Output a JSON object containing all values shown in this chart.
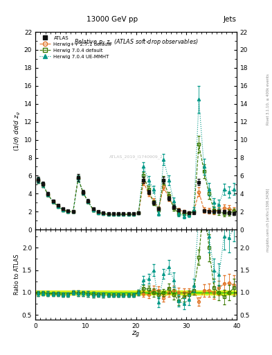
{
  "title_top": "13000 GeV pp",
  "title_right": "Jets",
  "main_title": "Relative $p_T$ $z_g$ (ATLAS soft-drop observables)",
  "ylabel_main": "(1/σ) dσ/d z_g",
  "ylabel_ratio": "Ratio to ATLAS",
  "xlabel": "z_g",
  "xlim": [
    0,
    40
  ],
  "ylim_main": [
    0,
    22
  ],
  "ylim_ratio": [
    0.4,
    2.4
  ],
  "ratio_yticks": [
    0.5,
    1.0,
    1.5,
    2.0
  ],
  "main_yticks": [
    0,
    2,
    4,
    6,
    8,
    10,
    12,
    14,
    16,
    18,
    20,
    22
  ],
  "xticks": [
    0,
    10,
    20,
    30,
    40
  ],
  "watermark": "mcplots.cern.ch [arXiv:1306.3436]",
  "rivet_label": "Rivet 3.1.10, ≥ 400k events",
  "atlas_x": [
    0.5,
    1.5,
    2.5,
    3.5,
    4.5,
    5.5,
    6.5,
    7.5,
    8.5,
    9.5,
    10.5,
    11.5,
    12.5,
    13.5,
    14.5,
    15.5,
    16.5,
    17.5,
    18.5,
    19.5,
    20.5,
    21.5,
    22.5,
    23.5,
    24.5,
    25.5,
    26.5,
    27.5,
    28.5,
    29.5,
    30.5,
    31.5,
    32.5,
    33.5,
    34.5,
    35.5,
    36.5,
    37.5,
    38.5,
    39.5
  ],
  "atlas_y": [
    5.6,
    5.1,
    4.0,
    3.2,
    2.7,
    2.3,
    2.1,
    2.0,
    5.8,
    4.2,
    3.2,
    2.3,
    2.0,
    1.9,
    1.8,
    1.8,
    1.8,
    1.8,
    1.8,
    1.8,
    1.9,
    5.5,
    4.2,
    3.0,
    2.3,
    5.5,
    3.5,
    2.5,
    2.2,
    2.0,
    1.9,
    1.9,
    5.3,
    2.1,
    2.0,
    2.0,
    2.0,
    2.0,
    1.9,
    1.8
  ],
  "atlas_yerr": [
    0.3,
    0.25,
    0.2,
    0.15,
    0.12,
    0.1,
    0.1,
    0.1,
    0.35,
    0.25,
    0.18,
    0.14,
    0.1,
    0.1,
    0.08,
    0.08,
    0.08,
    0.08,
    0.08,
    0.08,
    0.12,
    0.35,
    0.25,
    0.2,
    0.15,
    0.35,
    0.25,
    0.18,
    0.14,
    0.12,
    0.1,
    0.1,
    0.35,
    0.18,
    0.15,
    0.15,
    0.15,
    0.18,
    0.18,
    0.18
  ],
  "hpp271_x": [
    0.5,
    1.5,
    2.5,
    3.5,
    4.5,
    5.5,
    6.5,
    7.5,
    8.5,
    9.5,
    10.5,
    11.5,
    12.5,
    13.5,
    14.5,
    15.5,
    16.5,
    17.5,
    18.5,
    19.5,
    20.5,
    21.5,
    22.5,
    23.5,
    24.5,
    25.5,
    26.5,
    27.5,
    28.5,
    29.5,
    30.5,
    31.5,
    32.5,
    33.5,
    34.5,
    35.5,
    36.5,
    37.5,
    38.5,
    39.5
  ],
  "hpp271_y": [
    5.5,
    5.0,
    3.9,
    3.1,
    2.6,
    2.2,
    2.0,
    2.0,
    5.7,
    4.1,
    3.1,
    2.2,
    1.9,
    1.8,
    1.7,
    1.7,
    1.7,
    1.7,
    1.7,
    1.7,
    1.9,
    5.3,
    4.0,
    3.2,
    2.4,
    4.8,
    3.5,
    2.6,
    2.2,
    2.0,
    1.9,
    2.0,
    4.2,
    2.2,
    2.1,
    2.0,
    2.2,
    2.4,
    2.3,
    2.1
  ],
  "hpp271_yerr": [
    0.3,
    0.25,
    0.2,
    0.15,
    0.12,
    0.1,
    0.1,
    0.1,
    0.35,
    0.25,
    0.18,
    0.14,
    0.1,
    0.1,
    0.08,
    0.08,
    0.08,
    0.08,
    0.08,
    0.08,
    0.12,
    0.35,
    0.3,
    0.25,
    0.2,
    0.4,
    0.35,
    0.28,
    0.22,
    0.18,
    0.16,
    0.18,
    0.5,
    0.3,
    0.3,
    0.28,
    0.32,
    0.38,
    0.4,
    0.38
  ],
  "h704d_x": [
    0.5,
    1.5,
    2.5,
    3.5,
    4.5,
    5.5,
    6.5,
    7.5,
    8.5,
    9.5,
    10.5,
    11.5,
    12.5,
    13.5,
    14.5,
    15.5,
    16.5,
    17.5,
    18.5,
    19.5,
    20.5,
    21.5,
    22.5,
    23.5,
    24.5,
    25.5,
    26.5,
    27.5,
    28.5,
    29.5,
    30.5,
    31.5,
    32.5,
    33.5,
    34.5,
    35.5,
    36.5,
    37.5,
    38.5,
    39.5
  ],
  "h704d_y": [
    5.5,
    5.0,
    3.9,
    3.1,
    2.6,
    2.2,
    2.0,
    2.0,
    5.7,
    4.1,
    3.1,
    2.2,
    1.9,
    1.8,
    1.7,
    1.7,
    1.7,
    1.7,
    1.7,
    1.7,
    1.9,
    6.0,
    4.5,
    3.0,
    2.2,
    5.5,
    3.8,
    2.4,
    1.8,
    1.8,
    1.8,
    2.0,
    9.5,
    6.5,
    4.0,
    2.2,
    2.0,
    1.8,
    1.9,
    2.0
  ],
  "h704d_yerr": [
    0.3,
    0.25,
    0.2,
    0.15,
    0.12,
    0.1,
    0.1,
    0.1,
    0.35,
    0.25,
    0.18,
    0.14,
    0.1,
    0.1,
    0.08,
    0.08,
    0.08,
    0.08,
    0.08,
    0.08,
    0.12,
    0.4,
    0.35,
    0.28,
    0.2,
    0.45,
    0.38,
    0.28,
    0.22,
    0.2,
    0.18,
    0.2,
    0.9,
    0.8,
    0.6,
    0.4,
    0.35,
    0.32,
    0.32,
    0.35
  ],
  "h704u_x": [
    0.5,
    1.5,
    2.5,
    3.5,
    4.5,
    5.5,
    6.5,
    7.5,
    8.5,
    9.5,
    10.5,
    11.5,
    12.5,
    13.5,
    14.5,
    15.5,
    16.5,
    17.5,
    18.5,
    19.5,
    20.5,
    21.5,
    22.5,
    23.5,
    24.5,
    25.5,
    26.5,
    27.5,
    28.5,
    29.5,
    30.5,
    31.5,
    32.5,
    33.5,
    34.5,
    35.5,
    36.5,
    37.5,
    38.5,
    39.5
  ],
  "h704u_y": [
    5.5,
    5.0,
    3.9,
    3.1,
    2.6,
    2.2,
    2.0,
    2.0,
    5.7,
    4.1,
    3.1,
    2.2,
    1.9,
    1.8,
    1.7,
    1.7,
    1.7,
    1.7,
    1.7,
    1.7,
    1.9,
    7.0,
    5.5,
    4.5,
    1.8,
    7.8,
    5.5,
    3.2,
    1.8,
    1.5,
    1.6,
    2.2,
    14.5,
    7.0,
    4.5,
    3.0,
    2.8,
    4.5,
    4.2,
    4.5
  ],
  "h704u_yerr": [
    0.3,
    0.25,
    0.2,
    0.15,
    0.12,
    0.1,
    0.1,
    0.1,
    0.35,
    0.25,
    0.18,
    0.14,
    0.1,
    0.1,
    0.08,
    0.08,
    0.08,
    0.08,
    0.08,
    0.08,
    0.12,
    0.5,
    0.45,
    0.4,
    0.25,
    0.6,
    0.55,
    0.4,
    0.28,
    0.25,
    0.22,
    0.28,
    1.5,
    0.9,
    0.7,
    0.5,
    0.5,
    0.6,
    0.6,
    0.65
  ],
  "color_hpp271": "#e07020",
  "color_h704d": "#3a7a00",
  "color_h704u": "#009988",
  "atlas_color": "#111111",
  "ratio_band_color": "#d4f000",
  "ratio_line_color": "#00bb00",
  "bg_color": "#ffffff"
}
